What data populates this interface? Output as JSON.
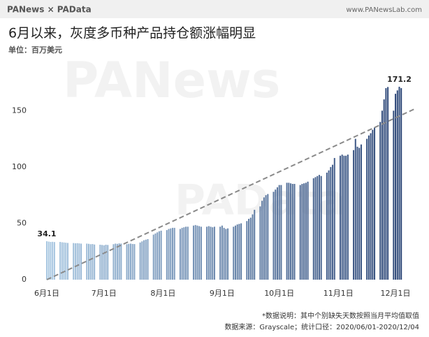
{
  "chart_data": {
    "type": "bar",
    "brand": "PANews × PAData",
    "website": "www.PANewsLab.com",
    "title": "6月以来，灰度多币种产品持仓额涨幅明显",
    "subtitle": "单位：百万美元",
    "watermarks": [
      "PANews",
      "PAData"
    ],
    "footnotes": [
      "*数据说明：其中个别缺失天数按照当月平均值取值",
      "数据来源：Grayscale；统计口径：2020/06/01-2020/12/04"
    ],
    "categories": [
      "6月1日",
      null,
      null,
      null,
      null,
      null,
      null,
      null,
      null,
      null,
      null,
      null,
      null,
      null,
      null,
      null,
      null,
      null,
      null,
      null,
      null,
      null,
      null,
      null,
      null,
      null,
      null,
      null,
      null,
      null,
      "7月1日",
      null,
      null,
      null,
      null,
      null,
      null,
      null,
      null,
      null,
      null,
      null,
      null,
      null,
      null,
      null,
      null,
      null,
      null,
      null,
      null,
      null,
      null,
      null,
      null,
      null,
      null,
      null,
      null,
      null,
      null,
      "8月1日",
      null,
      null,
      null,
      null,
      null,
      null,
      null,
      null,
      null,
      null,
      null,
      null,
      null,
      null,
      null,
      null,
      null,
      null,
      null,
      null,
      null,
      null,
      null,
      null,
      null,
      null,
      null,
      null,
      null,
      null,
      "9月1日",
      null,
      null,
      null,
      null,
      null,
      null,
      null,
      null,
      null,
      null,
      null,
      null,
      null,
      null,
      null,
      null,
      null,
      null,
      null,
      null,
      null,
      null,
      null,
      null,
      null,
      null,
      null,
      null,
      null,
      "10月1日",
      null,
      null,
      null,
      null,
      null,
      null,
      null,
      null,
      null,
      null,
      null,
      null,
      null,
      null,
      null,
      null,
      null,
      null,
      null,
      null,
      null,
      null,
      null,
      null,
      null,
      null,
      null,
      null,
      null,
      null,
      "11月1日",
      null,
      null,
      null,
      null,
      null,
      null,
      null,
      null,
      null,
      null,
      null,
      null,
      null,
      null,
      null,
      null,
      null,
      null,
      null,
      null,
      null,
      null,
      null,
      null,
      null,
      null,
      null,
      null,
      null,
      "12月1日",
      null,
      null,
      null
    ],
    "values": [
      34.1,
      33.8,
      33.5,
      33.6,
      33.4,
      null,
      null,
      33.5,
      33.2,
      33.0,
      32.8,
      32.6,
      null,
      null,
      32.5,
      32.3,
      32.4,
      32.2,
      32.0,
      null,
      null,
      32.0,
      31.8,
      31.5,
      31.6,
      31.2,
      null,
      null,
      31.0,
      30.8,
      30.5,
      31.0,
      30.8,
      null,
      null,
      31.5,
      32.0,
      31.8,
      32.2,
      32.0,
      null,
      null,
      31.5,
      31.8,
      32.0,
      31.7,
      31.6,
      null,
      null,
      33,
      34,
      35,
      35.5,
      36,
      null,
      null,
      40,
      41,
      42,
      43,
      43.5,
      null,
      null,
      44,
      45,
      45.5,
      46,
      46,
      null,
      null,
      45,
      46,
      46.5,
      47,
      47,
      null,
      null,
      48,
      48.5,
      48,
      47.5,
      47,
      null,
      null,
      47,
      47.5,
      47,
      46.5,
      47,
      null,
      null,
      47,
      48,
      46,
      45,
      45.5,
      null,
      null,
      47,
      48,
      49,
      49.5,
      50,
      null,
      null,
      52,
      54,
      55,
      58,
      62,
      null,
      null,
      65,
      70,
      73,
      75,
      76,
      null,
      null,
      78,
      80,
      82,
      84,
      84,
      null,
      null,
      86,
      86,
      85.5,
      85,
      85,
      null,
      null,
      84,
      85,
      85.5,
      86,
      87,
      null,
      null,
      90,
      91,
      92,
      93,
      92,
      null,
      null,
      95,
      97,
      100,
      102,
      108,
      null,
      null,
      110,
      111,
      110,
      110,
      111,
      null,
      null,
      115,
      125,
      118,
      117,
      120,
      null,
      null,
      125,
      128,
      130,
      133,
      135,
      null,
      null,
      140,
      150,
      160,
      170,
      171,
      null,
      null,
      150,
      165,
      168,
      171.2,
      170
    ],
    "data_labels_at": [
      0,
      185
    ],
    "color_start": "#a9c8e2",
    "color_end": "#2c4677",
    "trend_line": [
      0,
      146
    ],
    "trend_color": "#8a8a8a",
    "ylim": [
      0,
      175
    ],
    "yticks": [
      0,
      50,
      100,
      150
    ]
  }
}
